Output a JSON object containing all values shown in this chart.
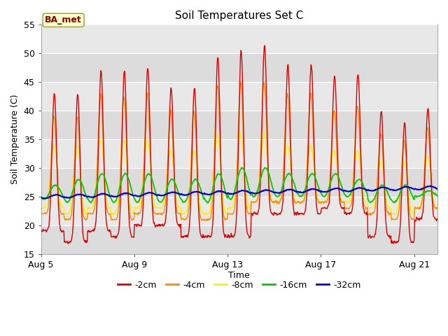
{
  "title": "Soil Temperatures Set C",
  "xlabel": "Time",
  "ylabel": "Soil Temperature (C)",
  "ylim": [
    15,
    55
  ],
  "xlim_days": [
    0,
    17
  ],
  "annotation": "BA_met",
  "xtick_labels": [
    "Aug 5",
    "Aug 9",
    "Aug 13",
    "Aug 17",
    "Aug 21"
  ],
  "xtick_positions": [
    0,
    4,
    8,
    12,
    16
  ],
  "ytick_positions": [
    15,
    20,
    25,
    30,
    35,
    40,
    45,
    50,
    55
  ],
  "colors": {
    "-2cm": "#dd0000",
    "-4cm": "#ff8800",
    "-8cm": "#ffee00",
    "-16cm": "#00cc00",
    "-32cm": "#0000cc"
  },
  "band_colors": [
    "#dcdcdc",
    "#e8e8e8"
  ],
  "line_width": 1.0,
  "num_days": 17,
  "pts_per_day": 48
}
